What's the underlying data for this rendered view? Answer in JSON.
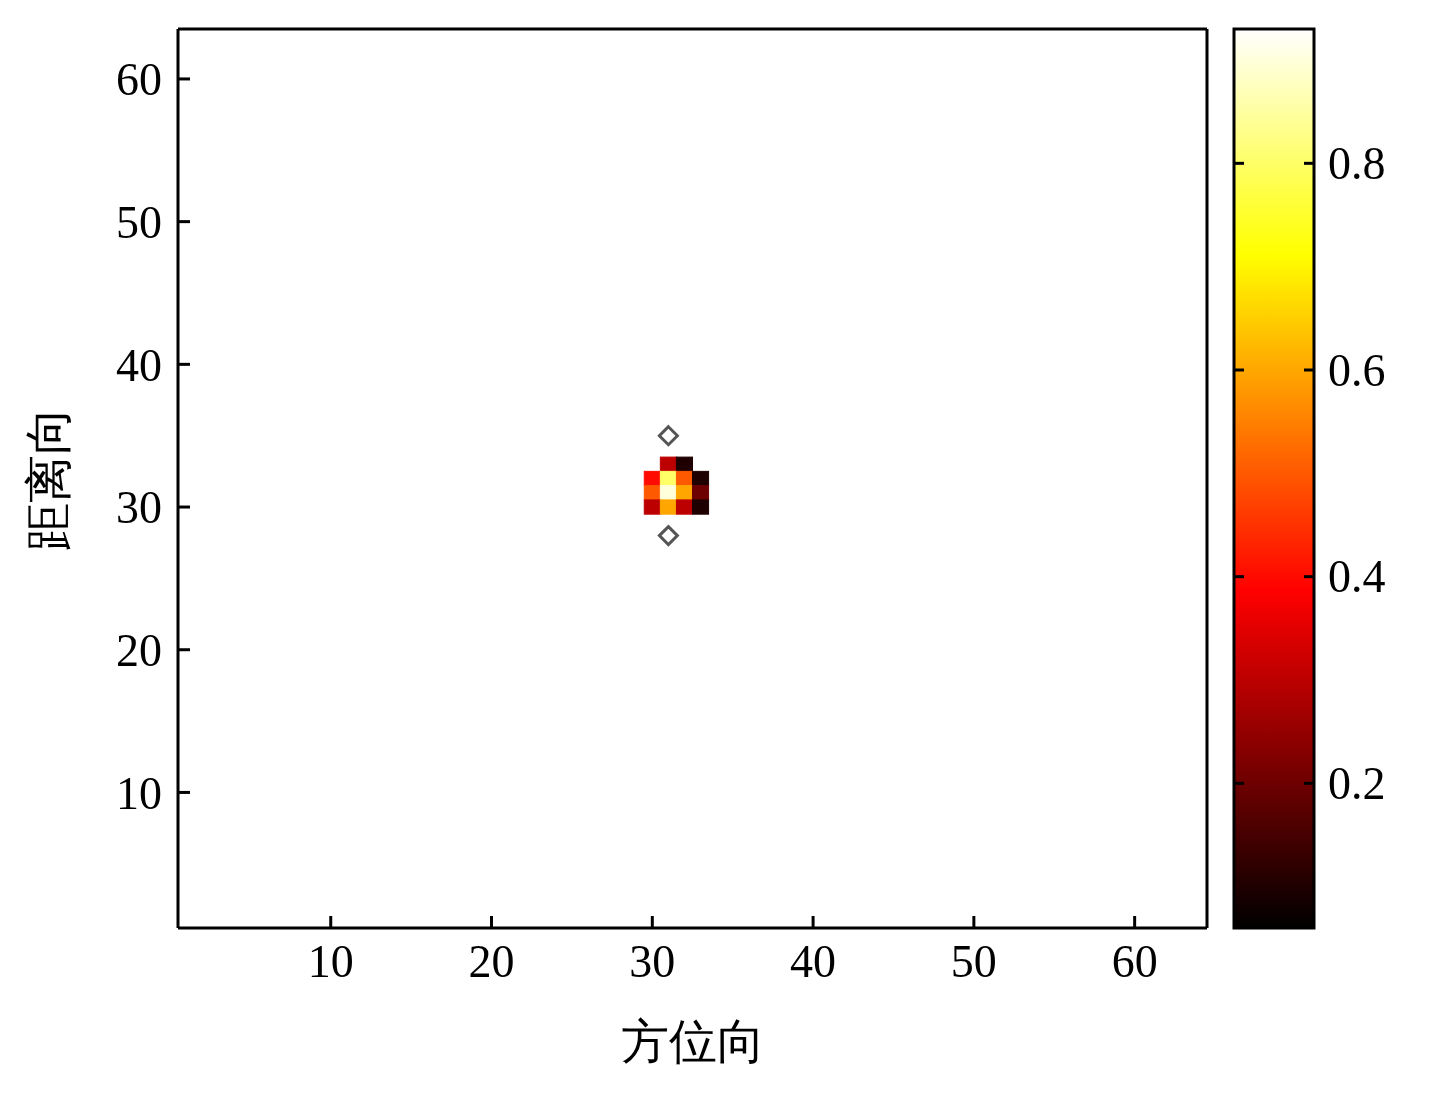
{
  "chart_data": {
    "type": "scatter",
    "xlabel": "方位向",
    "ylabel": "距离向",
    "xlim": [
      0.5,
      64.5
    ],
    "ylim": [
      0.5,
      63.5
    ],
    "xticks": [
      10,
      20,
      30,
      40,
      50,
      60
    ],
    "yticks": [
      10,
      20,
      30,
      40,
      50,
      60
    ],
    "clim": [
      0.06,
      0.93
    ],
    "cticks": [
      0.2,
      0.4,
      0.6,
      0.8
    ],
    "series": [
      {
        "marker": "square",
        "x": [
          31,
          32,
          30,
          31,
          32,
          33,
          30,
          31,
          32,
          33,
          30,
          31,
          32,
          33
        ],
        "values": [
          33,
          33,
          32,
          32,
          32,
          32,
          31,
          31,
          31,
          31,
          30,
          30,
          30,
          30
        ],
        "cvalues": [
          0.3,
          0.1,
          0.4,
          0.8,
          0.5,
          0.1,
          0.5,
          0.9,
          0.6,
          0.2,
          0.3,
          0.6,
          0.3,
          0.1
        ],
        "colors": [
          "#bc0000",
          "#1f0000",
          "#ff0b00",
          "#ffff67",
          "#ff5900",
          "#1f0000",
          "#ff5900",
          "#ffffdc",
          "#ffa700",
          "#6d0000",
          "#bc0000",
          "#ffa700",
          "#bc0000",
          "#1f0000"
        ]
      },
      {
        "marker": "diamond",
        "color": "#555555",
        "x": [
          31,
          31
        ],
        "values": [
          35,
          28
        ]
      }
    ]
  }
}
